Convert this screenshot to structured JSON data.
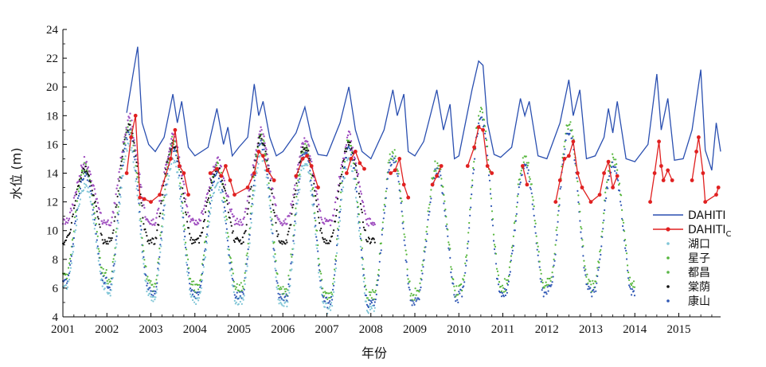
{
  "chart_data": {
    "type": "line",
    "xlabel": "年份",
    "ylabel": "水位 (m)",
    "xlim": [
      2001,
      2015.95
    ],
    "ylim": [
      4,
      24
    ],
    "x_ticks": [
      "2001",
      "2002",
      "2003",
      "2004",
      "2005",
      "2006",
      "2007",
      "2008",
      "2009",
      "2010",
      "2011",
      "2012",
      "2013",
      "2014",
      "2015"
    ],
    "y_ticks": [
      "4",
      "6",
      "8",
      "10",
      "12",
      "14",
      "16",
      "18",
      "20",
      "22",
      "24"
    ],
    "legend_position": "right",
    "series": [
      {
        "name": "DAHITI",
        "style": "line",
        "color": "#2a4fb0",
        "x": [
          2002.45,
          2002.6,
          2002.7,
          2002.8,
          2002.95,
          2003.1,
          2003.3,
          2003.5,
          2003.6,
          2003.7,
          2003.85,
          2004.0,
          2004.3,
          2004.5,
          2004.65,
          2004.75,
          2004.85,
          2005.0,
          2005.2,
          2005.35,
          2005.45,
          2005.55,
          2005.7,
          2005.85,
          2006.0,
          2006.3,
          2006.5,
          2006.65,
          2006.8,
          2007.0,
          2007.3,
          2007.5,
          2007.65,
          2007.8,
          2008.0,
          2008.3,
          2008.5,
          2008.6,
          2008.75,
          2008.85,
          2009.0,
          2009.2,
          2009.5,
          2009.65,
          2009.8,
          2009.9,
          2010.0,
          2010.3,
          2010.45,
          2010.55,
          2010.65,
          2010.8,
          2010.95,
          2011.2,
          2011.4,
          2011.5,
          2011.6,
          2011.8,
          2012.0,
          2012.3,
          2012.5,
          2012.6,
          2012.75,
          2012.9,
          2013.1,
          2013.3,
          2013.4,
          2013.5,
          2013.6,
          2013.8,
          2014.0,
          2014.3,
          2014.5,
          2014.6,
          2014.75,
          2014.9,
          2015.1,
          2015.3,
          2015.5,
          2015.6,
          2015.75,
          2015.85,
          2015.95
        ],
        "y": [
          18.2,
          21.0,
          22.8,
          17.5,
          16.0,
          15.5,
          16.5,
          19.5,
          17.5,
          19.0,
          15.8,
          15.2,
          15.8,
          18.5,
          16.0,
          17.2,
          15.2,
          15.8,
          16.5,
          20.2,
          18.0,
          19.0,
          16.5,
          15.2,
          15.5,
          16.8,
          18.6,
          16.5,
          15.3,
          15.2,
          17.5,
          20.0,
          17.0,
          15.5,
          15.0,
          17.0,
          19.8,
          18.0,
          19.5,
          15.5,
          15.2,
          16.2,
          19.8,
          17.0,
          18.8,
          15.0,
          15.2,
          19.8,
          21.8,
          21.5,
          17.5,
          15.3,
          15.1,
          15.8,
          19.2,
          18.0,
          19.0,
          15.2,
          15.0,
          17.5,
          20.5,
          18.0,
          19.8,
          15.0,
          15.2,
          16.5,
          18.5,
          16.8,
          19.0,
          15.0,
          14.8,
          16.0,
          20.9,
          17.0,
          19.2,
          14.9,
          15.0,
          17.0,
          21.2,
          15.6,
          14.2,
          17.5,
          15.5
        ]
      },
      {
        "name": "DAHITIC",
        "name_main": "DAHITI",
        "name_sub": "C",
        "style": "line-marker",
        "color": "#e02020",
        "x": [
          2002.45,
          2002.55,
          2002.65,
          2002.75,
          2002.85,
          2003.0,
          2003.2,
          2003.45,
          2003.55,
          2003.65,
          2003.75,
          2003.85,
          2004.35,
          2004.5,
          2004.6,
          2004.7,
          2004.8,
          2004.9,
          2005.2,
          2005.35,
          2005.45,
          2005.55,
          2005.65,
          2005.8,
          2006.3,
          2006.45,
          2006.55,
          2006.65,
          2006.8,
          2007.45,
          2007.55,
          2007.65,
          2007.75,
          2007.85,
          2008.45,
          2008.55,
          2008.65,
          2008.75,
          2008.85,
          2009.4,
          2009.5,
          2009.6,
          2010.2,
          2010.35,
          2010.45,
          2010.55,
          2010.65,
          2010.75,
          2011.45,
          2011.55,
          2012.2,
          2012.3,
          2012.4,
          2012.5,
          2012.6,
          2012.7,
          2012.8,
          2013.0,
          2013.2,
          2013.3,
          2013.4,
          2013.5,
          2013.6,
          2014.35,
          2014.45,
          2014.55,
          2014.6,
          2014.65,
          2014.75,
          2014.85,
          2015.3,
          2015.4,
          2015.45,
          2015.55,
          2015.6,
          2015.85,
          2015.9
        ],
        "y": [
          14.0,
          16.5,
          18.0,
          12.3,
          12.2,
          12.0,
          12.5,
          15.0,
          17.0,
          14.5,
          14.0,
          12.5,
          14.0,
          14.3,
          13.8,
          14.5,
          13.5,
          12.5,
          13.0,
          14.0,
          15.5,
          15.2,
          14.2,
          13.5,
          13.8,
          15.0,
          15.2,
          14.5,
          13.0,
          14.0,
          15.0,
          15.5,
          14.7,
          14.3,
          14.0,
          14.2,
          15.0,
          13.2,
          12.3,
          13.2,
          13.8,
          14.5,
          14.5,
          15.8,
          17.2,
          17.0,
          14.5,
          14.0,
          14.5,
          13.2,
          12.0,
          13.5,
          15.0,
          15.2,
          16.2,
          14.0,
          13.0,
          12.0,
          12.5,
          14.0,
          14.8,
          13.0,
          13.8,
          12.0,
          14.0,
          16.2,
          14.5,
          13.5,
          14.2,
          13.5,
          13.5,
          15.5,
          16.5,
          14.0,
          12.0,
          12.5,
          13.0
        ]
      },
      {
        "name": "湖口",
        "style": "dots",
        "color": "#7fc5d6"
      },
      {
        "name": "星子",
        "style": "dots",
        "color": "#56b63c"
      },
      {
        "name": "都昌",
        "style": "dots",
        "color": "#5ab648"
      },
      {
        "name": "棠荫",
        "style": "dots",
        "color": "#111111"
      },
      {
        "name": "康山",
        "style": "dots",
        "color": "#2e56b4"
      },
      {
        "name": "",
        "style": "dots",
        "color": "#a050c0"
      }
    ]
  }
}
